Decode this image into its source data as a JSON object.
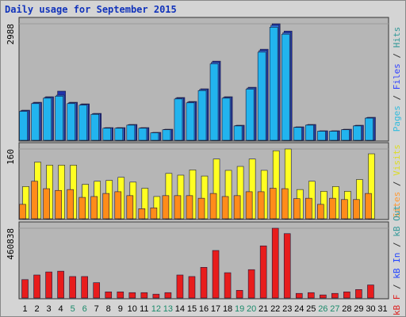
{
  "chart_data": [
    {
      "type": "bar",
      "title": "Daily usage for September 2015",
      "ylim": [
        0,
        2988
      ],
      "yticks": [
        2988
      ],
      "legend_separator": " / ",
      "series": [
        {
          "name": "Pages",
          "color": "#22b4ee",
          "label_color": "#33bbdd",
          "values": [
            740,
            940,
            1080,
            1130,
            940,
            900,
            665,
            310,
            310,
            388,
            310,
            192,
            270,
            1060,
            960,
            1275,
            1960,
            1080,
            368,
            1310,
            2260,
            2900,
            2720,
            330,
            388,
            232,
            232,
            270,
            368,
            568,
            null
          ]
        },
        {
          "name": "Files",
          "color": "#2f6fd8",
          "label_color": "#3344ff",
          "values": [
            760,
            960,
            1100,
            1158,
            960,
            920,
            680,
            318,
            318,
            398,
            318,
            198,
            278,
            1080,
            980,
            1300,
            2000,
            1100,
            378,
            1340,
            2300,
            2950,
            2760,
            338,
            398,
            238,
            238,
            278,
            378,
            580,
            null
          ]
        },
        {
          "name": "Hits",
          "color": "#2233aa",
          "label_color": "#339999",
          "values": [
            772,
            975,
            1117,
            1260,
            975,
            934,
            690,
            325,
            325,
            406,
            325,
            203,
            284,
            1097,
            995,
            1320,
            2030,
            1117,
            386,
            1360,
            2335,
            2988,
            2801,
            345,
            406,
            244,
            244,
            284,
            386,
            589,
            null
          ]
        }
      ]
    },
    {
      "type": "bar",
      "ylim": [
        0,
        160
      ],
      "yticks": [
        160
      ],
      "legend_separator": " / ",
      "series": [
        {
          "name": "Sites",
          "color": "#ff8c1a",
          "label_color": "#ff9933",
          "values": [
            33,
            86,
            69,
            65,
            67,
            49,
            51,
            58,
            62,
            53,
            23,
            25,
            53,
            53,
            53,
            47,
            58,
            51,
            53,
            62,
            62,
            70,
            69,
            46,
            47,
            33,
            47,
            44,
            44,
            58,
            null
          ]
        },
        {
          "name": "Visits",
          "color": "#ffff22",
          "label_color": "#dddd22",
          "values": [
            74,
            130,
            123,
            123,
            123,
            79,
            86,
            88,
            95,
            84,
            70,
            51,
            104,
            100,
            112,
            98,
            137,
            111,
            120,
            137,
            111,
            156,
            160,
            67,
            86,
            63,
            74,
            63,
            90,
            149,
            null
          ]
        }
      ]
    },
    {
      "type": "bar",
      "ylim": [
        0,
        460838
      ],
      "yticks": [
        460838
      ],
      "legend_separator": " / ",
      "categories": [
        "1",
        "2",
        "3",
        "4",
        "5",
        "6",
        "7",
        "8",
        "9",
        "10",
        "11",
        "12",
        "13",
        "14",
        "15",
        "16",
        "17",
        "18",
        "19",
        "20",
        "21",
        "22",
        "23",
        "24",
        "25",
        "26",
        "27",
        "28",
        "29",
        "30",
        "31"
      ],
      "weekend": [
        4,
        5,
        11,
        12,
        18,
        19,
        25,
        26
      ],
      "weekend_color": "#1a8a6a",
      "series": [
        {
          "name": "kB F",
          "color": "#e81c1c",
          "label_color": "#dd2222",
          "values": [
            121536,
            151920,
            172176,
            177240,
            141792,
            141792,
            101280,
            40512,
            40512,
            35448,
            35448,
            25320,
            35448,
            151920,
            141792,
            202560,
            313968,
            167112,
            50640,
            187368,
            344352,
            460838,
            425376,
            30384,
            35448,
            20256,
            30384,
            40512,
            55704,
            86136,
            null
          ]
        },
        {
          "name": "kB In",
          "color": "#2244ff",
          "label_color": "#2244ff",
          "values": [
            null,
            null,
            null,
            null,
            null,
            null,
            null,
            null,
            null,
            null,
            null,
            null,
            null,
            null,
            null,
            null,
            null,
            null,
            null,
            null,
            null,
            null,
            null,
            null,
            null,
            null,
            null,
            null,
            null,
            null,
            null
          ]
        },
        {
          "name": "kB Out",
          "color": "#339999",
          "label_color": "#339999",
          "values": [
            null,
            null,
            null,
            null,
            null,
            null,
            null,
            null,
            null,
            null,
            null,
            null,
            null,
            null,
            null,
            null,
            null,
            null,
            null,
            null,
            null,
            null,
            null,
            null,
            null,
            null,
            null,
            null,
            null,
            null,
            null
          ]
        }
      ]
    }
  ]
}
